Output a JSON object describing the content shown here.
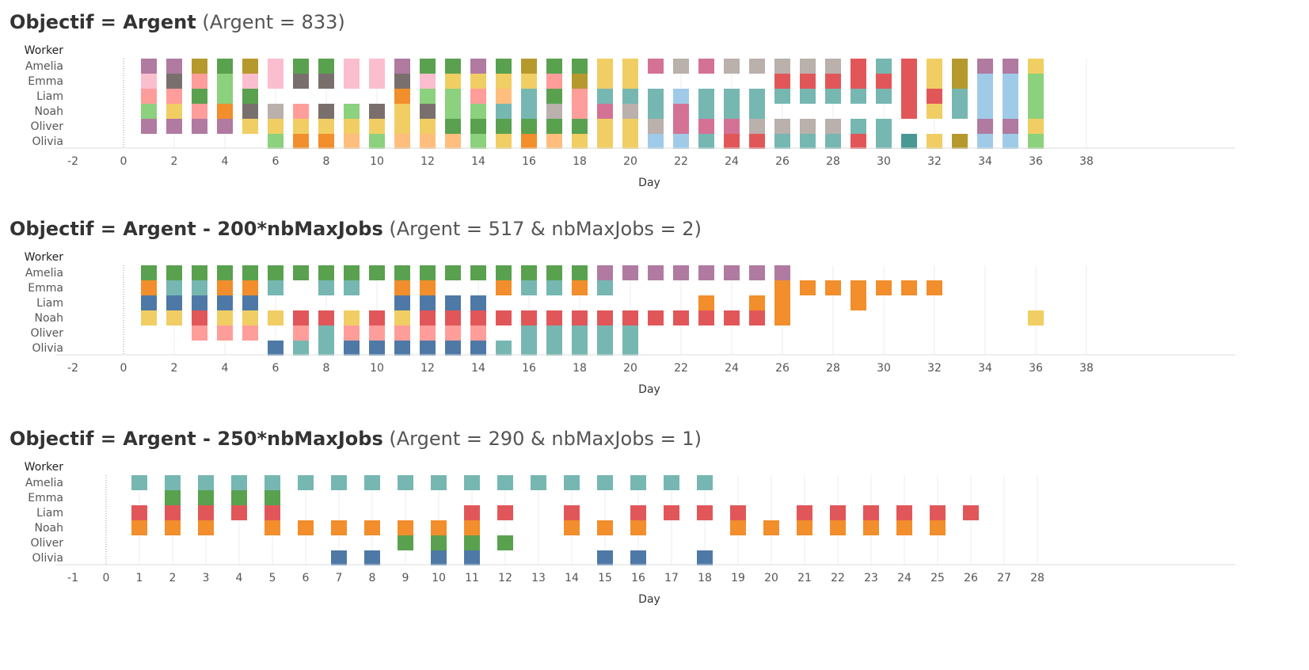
{
  "palette": {
    "Tp": "#b07aa1",
    "Pk": "#fbbecf",
    "Pn": "#ff9d9a",
    "Lg": "#8cd17d",
    "Pu": "#b07aa1",
    "Ol": "#b6992d",
    "Br": "#79706e",
    "G": "#59a14f",
    "Y": "#f1ce63",
    "O": "#f28e2b",
    "Ta": "#bab0ac",
    "Pe": "#ffbe7d",
    "Te": "#76b7b2",
    "DT": "#499894",
    "Lb": "#a0cbe8",
    "Ro": "#d37295",
    "R": "#e15759",
    "B": "#4e79a7"
  },
  "charts": [
    {
      "title_bold": "Objectif = Argent",
      "title_light": "(Argent = 833)",
      "chart_data": {
        "type": "heatmap",
        "x_label": "Day",
        "y_header": "Worker",
        "workers": [
          "Amelia",
          "Emma",
          "Liam",
          "Noah",
          "Oliver",
          "Olivia"
        ],
        "x_ticks": [
          "-2",
          "0",
          "2",
          "4",
          "6",
          "8",
          "10",
          "12",
          "14",
          "16",
          "18",
          "20",
          "22",
          "24",
          "26",
          "28",
          "30",
          "32",
          "34",
          "36",
          "38"
        ],
        "xlim": [
          -2,
          38
        ],
        "days": {
          "1": [
            "Pu",
            "Pk",
            "Pn",
            "Lg",
            "Pu",
            ""
          ],
          "2": [
            "Pu",
            "Br",
            "Pn",
            "Y",
            "Pu",
            ""
          ],
          "3": [
            "Ol",
            "Pn",
            "G",
            "Pn",
            "Pu",
            ""
          ],
          "4": [
            "G",
            "Lg",
            "Lg",
            "O",
            "Pu",
            ""
          ],
          "5": [
            "Ol",
            "Pk",
            "G",
            "Br",
            "Y",
            ""
          ],
          "6": [
            "Pk",
            "Pk",
            "",
            "Ta",
            "Y",
            "Lg"
          ],
          "7": [
            "G",
            "Br",
            "",
            "Pn",
            "Y",
            "O"
          ],
          "8": [
            "G",
            "Br",
            "",
            "Br",
            "Y",
            "O"
          ],
          "9": [
            "Pk",
            "Pk",
            "",
            "Lg",
            "Y",
            "Pe"
          ],
          "10": [
            "Pk",
            "Pk",
            "",
            "Br",
            "Y",
            "Lg"
          ],
          "11": [
            "Pu",
            "Br",
            "O",
            "Y",
            "Y",
            "Pe"
          ],
          "12": [
            "G",
            "Pk",
            "Lg",
            "Br",
            "Y",
            "Pe"
          ],
          "13": [
            "G",
            "Y",
            "Lg",
            "Lg",
            "G",
            "Pe"
          ],
          "14": [
            "Pu",
            "Y",
            "Pn",
            "Lg",
            "G",
            "Lg"
          ],
          "15": [
            "G",
            "Y",
            "Pe",
            "Te",
            "G",
            "Y"
          ],
          "16": [
            "Ol",
            "Y",
            "Te",
            "Te",
            "G",
            "O"
          ],
          "17": [
            "G",
            "Pn",
            "G",
            "Ta",
            "G",
            "Pe"
          ],
          "18": [
            "G",
            "Ol",
            "Pn",
            "Pn",
            "G",
            "Y"
          ],
          "19": [
            "Y",
            "Y",
            "Te",
            "Ro",
            "Y",
            "Y"
          ],
          "20": [
            "Y",
            "Y",
            "Te",
            "Ta",
            "Y",
            "Y"
          ],
          "21": [
            "Ro",
            "",
            "Te",
            "Te",
            "Ta",
            "Lb"
          ],
          "22": [
            "Ta",
            "",
            "Lb",
            "Ro",
            "Ro",
            "Lb"
          ],
          "23": [
            "Ro",
            "",
            "Te",
            "Te",
            "Ro",
            "Te"
          ],
          "24": [
            "Ta",
            "",
            "Te",
            "Te",
            "Ro",
            "R"
          ],
          "25": [
            "Ta",
            "",
            "Te",
            "Te",
            "Ta",
            "R"
          ],
          "26": [
            "Ta",
            "R",
            "Te",
            "",
            "Ta",
            "Te"
          ],
          "27": [
            "Ta",
            "R",
            "Te",
            "",
            "Ta",
            "Te"
          ],
          "28": [
            "Ta",
            "R",
            "Te",
            "",
            "Ta",
            "Te"
          ],
          "29": [
            "R",
            "R",
            "Te",
            "",
            "Te",
            "R"
          ],
          "30": [
            "Te",
            "R",
            "Te",
            "",
            "Te",
            "Te"
          ],
          "31": [
            "R",
            "R",
            "R",
            "R",
            "",
            "DT"
          ],
          "32": [
            "Y",
            "Y",
            "R",
            "Y",
            "",
            "Y"
          ],
          "33": [
            "Ol",
            "Ol",
            "Te",
            "Te",
            "",
            "Ol"
          ],
          "34": [
            "Pu",
            "Lb",
            "Lb",
            "Lb",
            "Pu",
            "Lb"
          ],
          "35": [
            "Pu",
            "Lb",
            "Lb",
            "Lb",
            "Pu",
            "Lb"
          ],
          "36": [
            "Y",
            "Lg",
            "Lg",
            "Lg",
            "Y",
            "Lg"
          ]
        }
      }
    },
    {
      "title_bold": "Objectif = Argent - 200*nbMaxJobs",
      "title_light": "(Argent = 517 & nbMaxJobs = 2)",
      "chart_data": {
        "type": "heatmap",
        "x_label": "Day",
        "y_header": "Worker",
        "workers": [
          "Amelia",
          "Emma",
          "Liam",
          "Noah",
          "Oliver",
          "Olivia"
        ],
        "x_ticks": [
          "-2",
          "0",
          "2",
          "4",
          "6",
          "8",
          "10",
          "12",
          "14",
          "16",
          "18",
          "20",
          "22",
          "24",
          "26",
          "28",
          "30",
          "32",
          "34",
          "36",
          "38"
        ],
        "xlim": [
          -2,
          38
        ],
        "days": {
          "1": [
            "G",
            "O",
            "B",
            "Y",
            "",
            ""
          ],
          "2": [
            "G",
            "Te",
            "B",
            "Y",
            "",
            ""
          ],
          "3": [
            "G",
            "Te",
            "B",
            "R",
            "Pn",
            ""
          ],
          "4": [
            "G",
            "O",
            "B",
            "Y",
            "Pn",
            ""
          ],
          "5": [
            "G",
            "O",
            "B",
            "Y",
            "Pn",
            ""
          ],
          "6": [
            "G",
            "Te",
            "",
            "Y",
            "",
            "B"
          ],
          "7": [
            "G",
            "",
            "",
            "R",
            "Pn",
            "Te"
          ],
          "8": [
            "G",
            "Te",
            "",
            "R",
            "Te",
            "Te"
          ],
          "9": [
            "G",
            "Te",
            "",
            "Y",
            "Pn",
            "B"
          ],
          "10": [
            "G",
            "",
            "",
            "R",
            "Pn",
            "B"
          ],
          "11": [
            "G",
            "O",
            "B",
            "Y",
            "Pn",
            "B"
          ],
          "12": [
            "G",
            "O",
            "B",
            "R",
            "Pn",
            "B"
          ],
          "13": [
            "G",
            "",
            "B",
            "R",
            "Pn",
            "B"
          ],
          "14": [
            "G",
            "",
            "B",
            "R",
            "Pn",
            "B"
          ],
          "15": [
            "G",
            "O",
            "",
            "R",
            "",
            "Te"
          ],
          "16": [
            "G",
            "Te",
            "",
            "R",
            "Te",
            "Te"
          ],
          "17": [
            "G",
            "Te",
            "",
            "R",
            "Te",
            "Te"
          ],
          "18": [
            "G",
            "O",
            "",
            "R",
            "Te",
            "Te"
          ],
          "19": [
            "Pu",
            "Te",
            "",
            "R",
            "Te",
            "Te"
          ],
          "20": [
            "Pu",
            "",
            "",
            "R",
            "Te",
            "Te"
          ],
          "21": [
            "Pu",
            "",
            "",
            "R",
            "",
            ""
          ],
          "22": [
            "Pu",
            "",
            "",
            "R",
            "",
            ""
          ],
          "23": [
            "Pu",
            "",
            "O",
            "R",
            "",
            ""
          ],
          "24": [
            "Pu",
            "",
            "",
            "R",
            "",
            ""
          ],
          "25": [
            "Pu",
            "",
            "O",
            "R",
            "",
            ""
          ],
          "26": [
            "Pu",
            "O",
            "O",
            "O",
            "",
            ""
          ],
          "27": [
            "",
            "O",
            "",
            "",
            "",
            ""
          ],
          "28": [
            "",
            "O",
            "",
            "",
            "",
            ""
          ],
          "29": [
            "",
            "O",
            "O",
            "",
            "",
            ""
          ],
          "30": [
            "",
            "O",
            "",
            "",
            "",
            ""
          ],
          "31": [
            "",
            "O",
            "",
            "",
            "",
            ""
          ],
          "32": [
            "",
            "O",
            "",
            "",
            "",
            ""
          ],
          "36": [
            "",
            "",
            "",
            "Y",
            "",
            ""
          ]
        }
      }
    },
    {
      "title_bold": "Objectif = Argent - 250*nbMaxJobs",
      "title_light": "(Argent = 290 & nbMaxJobs = 1)",
      "chart_data": {
        "type": "heatmap",
        "x_label": "Day",
        "y_header": "Worker",
        "workers": [
          "Amelia",
          "Emma",
          "Liam",
          "Noah",
          "Oliver",
          "Olivia"
        ],
        "x_ticks": [
          "-1",
          "0",
          "1",
          "2",
          "3",
          "4",
          "5",
          "6",
          "7",
          "8",
          "9",
          "10",
          "11",
          "12",
          "13",
          "14",
          "15",
          "16",
          "17",
          "18",
          "19",
          "20",
          "21",
          "22",
          "23",
          "24",
          "25",
          "26",
          "27",
          "28"
        ],
        "xlim": [
          -1,
          28
        ],
        "days": {
          "1": [
            "Te",
            "",
            "R",
            "O",
            "",
            ""
          ],
          "2": [
            "Te",
            "G",
            "R",
            "O",
            "",
            ""
          ],
          "3": [
            "Te",
            "G",
            "R",
            "O",
            "",
            ""
          ],
          "4": [
            "Te",
            "G",
            "R",
            "",
            "",
            ""
          ],
          "5": [
            "Te",
            "G",
            "R",
            "O",
            "",
            ""
          ],
          "6": [
            "Te",
            "",
            "",
            "O",
            "",
            ""
          ],
          "7": [
            "Te",
            "",
            "",
            "O",
            "",
            "B"
          ],
          "8": [
            "Te",
            "",
            "",
            "O",
            "",
            "B"
          ],
          "9": [
            "Te",
            "",
            "",
            "O",
            "G",
            ""
          ],
          "10": [
            "Te",
            "",
            "",
            "O",
            "G",
            "B"
          ],
          "11": [
            "Te",
            "",
            "R",
            "O",
            "G",
            "B"
          ],
          "12": [
            "Te",
            "",
            "R",
            "",
            "G",
            ""
          ],
          "13": [
            "Te",
            "",
            "",
            "",
            "",
            ""
          ],
          "14": [
            "Te",
            "",
            "R",
            "O",
            "",
            ""
          ],
          "15": [
            "Te",
            "",
            "",
            "O",
            "",
            "B"
          ],
          "16": [
            "Te",
            "",
            "R",
            "O",
            "",
            "B"
          ],
          "17": [
            "Te",
            "",
            "R",
            "",
            "",
            ""
          ],
          "18": [
            "Te",
            "",
            "R",
            "",
            "",
            "B"
          ],
          "19": [
            "",
            "",
            "R",
            "O",
            "",
            ""
          ],
          "20": [
            "",
            "",
            "",
            "O",
            "",
            ""
          ],
          "21": [
            "",
            "",
            "R",
            "O",
            "",
            ""
          ],
          "22": [
            "",
            "",
            "R",
            "O",
            "",
            ""
          ],
          "23": [
            "",
            "",
            "R",
            "O",
            "",
            ""
          ],
          "24": [
            "",
            "",
            "R",
            "O",
            "",
            ""
          ],
          "25": [
            "",
            "",
            "R",
            "O",
            "",
            ""
          ],
          "26": [
            "",
            "",
            "R",
            "",
            "",
            ""
          ]
        }
      }
    }
  ]
}
